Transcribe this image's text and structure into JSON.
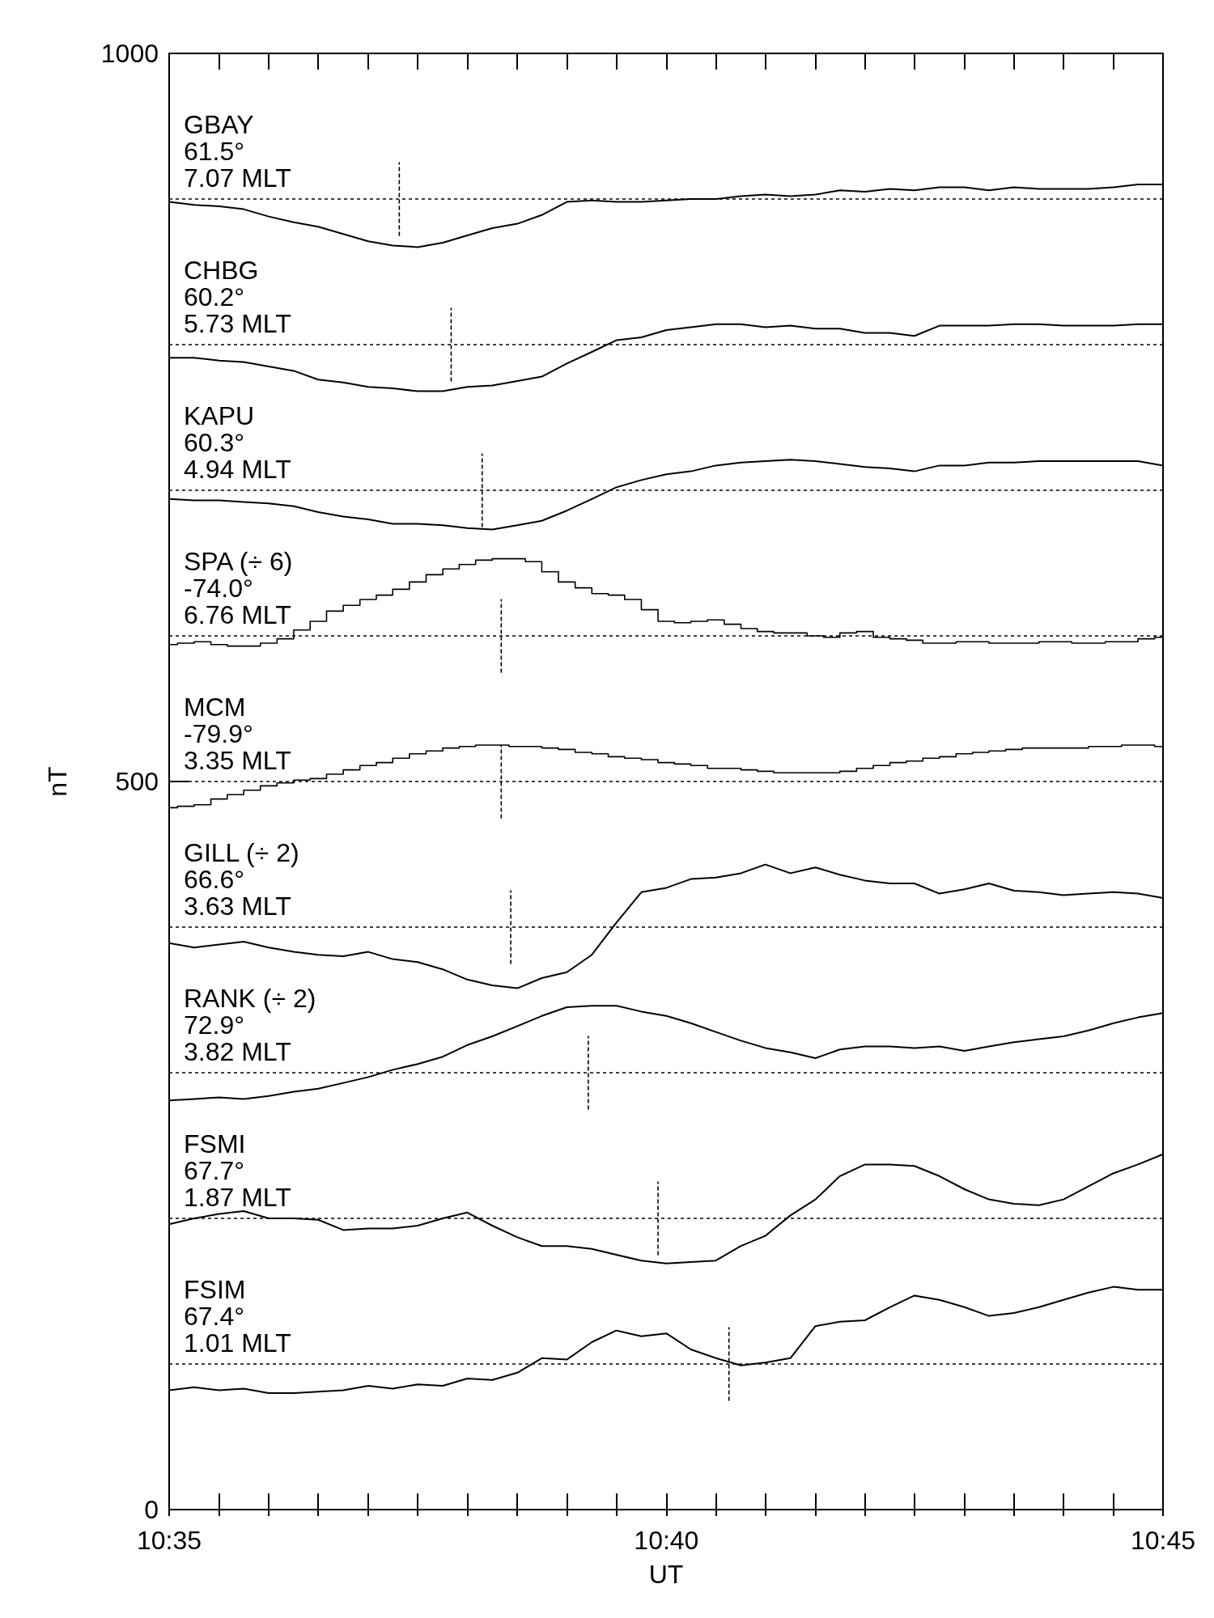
{
  "chart_data": {
    "type": "line",
    "xlabel": "UT",
    "ylabel": "nT",
    "marker": "none",
    "xlim": [
      10.5833,
      10.75
    ],
    "ylim": [
      0,
      1000
    ],
    "xticks": [
      {
        "value": 10.5833,
        "label": "10:35"
      },
      {
        "value": 10.5917,
        "label": null
      },
      {
        "value": 10.6,
        "label": null
      },
      {
        "value": 10.6083,
        "label": null
      },
      {
        "value": 10.6167,
        "label": null
      },
      {
        "value": 10.625,
        "label": null
      },
      {
        "value": 10.6333,
        "label": null
      },
      {
        "value": 10.6417,
        "label": null
      },
      {
        "value": 10.65,
        "label": null
      },
      {
        "value": 10.6583,
        "label": null
      },
      {
        "value": 10.6667,
        "label": "10:40"
      },
      {
        "value": 10.675,
        "label": null
      },
      {
        "value": 10.6833,
        "label": null
      },
      {
        "value": 10.6917,
        "label": null
      },
      {
        "value": 10.7,
        "label": null
      },
      {
        "value": 10.7083,
        "label": null
      },
      {
        "value": 10.7167,
        "label": null
      },
      {
        "value": 10.725,
        "label": null
      },
      {
        "value": 10.7333,
        "label": null
      },
      {
        "value": 10.7417,
        "label": null
      },
      {
        "value": 10.75,
        "label": "10:45"
      }
    ],
    "yticks": [
      0,
      500,
      1000
    ],
    "x": [
      10.5833,
      10.5875,
      10.5917,
      10.5958,
      10.6,
      10.6042,
      10.6083,
      10.6125,
      10.6167,
      10.6208,
      10.625,
      10.6292,
      10.6333,
      10.6375,
      10.6417,
      10.6458,
      10.65,
      10.6542,
      10.6583,
      10.6625,
      10.6667,
      10.6708,
      10.675,
      10.6792,
      10.6833,
      10.6875,
      10.6917,
      10.6958,
      10.7,
      10.7042,
      10.7083,
      10.7125,
      10.7167,
      10.7208,
      10.725,
      10.7292,
      10.7333,
      10.7375,
      10.7417,
      10.7458,
      10.75
    ],
    "ref_lines": [
      {
        "axis": "y",
        "value": 900,
        "line_style": "dotted",
        "color": "#000000"
      },
      {
        "axis": "y",
        "value": 800,
        "line_style": "dotted",
        "color": "#000000"
      },
      {
        "axis": "y",
        "value": 700,
        "line_style": "dotted",
        "color": "#000000"
      },
      {
        "axis": "y",
        "value": 600,
        "line_style": "dotted",
        "color": "#000000"
      },
      {
        "axis": "y",
        "value": 500,
        "line_style": "dotted",
        "color": "#000000"
      },
      {
        "axis": "y",
        "value": 400,
        "line_style": "dotted",
        "color": "#000000"
      },
      {
        "axis": "y",
        "value": 300,
        "line_style": "dotted",
        "color": "#000000"
      },
      {
        "axis": "y",
        "value": 200,
        "line_style": "dotted",
        "color": "#000000"
      },
      {
        "axis": "y",
        "value": 100,
        "line_style": "dotted",
        "color": "#000000"
      }
    ],
    "series": [
      {
        "color": "#000000",
        "values": [
          898,
          896,
          895,
          893,
          888,
          884,
          881,
          876,
          871,
          868,
          867,
          870,
          875,
          880,
          883,
          889,
          898,
          899,
          898,
          898,
          899,
          900,
          900,
          902,
          903,
          902,
          903,
          906,
          905,
          907,
          906,
          908,
          908,
          906,
          908,
          907,
          907,
          907,
          908,
          910,
          910
        ]
      },
      {
        "color": "#000000",
        "values": [
          791,
          791,
          789,
          788,
          785,
          782,
          776,
          774,
          771,
          770,
          768,
          768,
          771,
          772,
          775,
          778,
          787,
          795,
          803,
          805,
          810,
          812,
          814,
          814,
          812,
          813,
          811,
          811,
          808,
          808,
          806,
          813,
          813,
          813,
          814,
          814,
          813,
          813,
          813,
          814,
          814
        ]
      },
      {
        "color": "#000000",
        "values": [
          694,
          693,
          693,
          692,
          691,
          689,
          685,
          682,
          680,
          677,
          677,
          676,
          674,
          673,
          676,
          679,
          686,
          694,
          702,
          707,
          711,
          713,
          717,
          719,
          720,
          721,
          720,
          718,
          716,
          715,
          713,
          717,
          717,
          719,
          719,
          720,
          720,
          720,
          720,
          720,
          717
        ]
      },
      {
        "type": "step",
        "color": "#000000",
        "x": [
          10.5833,
          10.5861,
          10.5889,
          10.5917,
          10.5944,
          10.5972,
          10.6,
          10.6028,
          10.6056,
          10.6083,
          10.6111,
          10.6139,
          10.6167,
          10.6194,
          10.6222,
          10.625,
          10.6278,
          10.6306,
          10.6333,
          10.6361,
          10.6389,
          10.6417,
          10.6444,
          10.6472,
          10.65,
          10.6528,
          10.6556,
          10.6583,
          10.6611,
          10.6639,
          10.6667,
          10.6694,
          10.6722,
          10.675,
          10.6778,
          10.6806,
          10.6833,
          10.6861,
          10.6889,
          10.6917,
          10.6944,
          10.6972,
          10.7,
          10.7028,
          10.7056,
          10.7083,
          10.7111,
          10.7139,
          10.7167,
          10.7194,
          10.7222,
          10.725,
          10.7278,
          10.7306,
          10.7333,
          10.7361,
          10.7389,
          10.7417,
          10.7444,
          10.7472,
          10.75
        ],
        "values": [
          594,
          595,
          596,
          594,
          593,
          593,
          595,
          598,
          604,
          610,
          617,
          621,
          625,
          628,
          632,
          637,
          642,
          646,
          649,
          652,
          653,
          653,
          651,
          644,
          637,
          633,
          629,
          628,
          625,
          618,
          610,
          609,
          610,
          611,
          608,
          605,
          603,
          602,
          602,
          600,
          599,
          602,
          603,
          599,
          598,
          597,
          595,
          595,
          596,
          596,
          595,
          595,
          595,
          596,
          596,
          595,
          595,
          596,
          596,
          598,
          599
        ]
      },
      {
        "type": "step",
        "color": "#000000",
        "x": [
          10.5833,
          10.5861,
          10.5889,
          10.5917,
          10.5944,
          10.5972,
          10.6,
          10.6028,
          10.6056,
          10.6083,
          10.6111,
          10.6139,
          10.6167,
          10.6194,
          10.6222,
          10.625,
          10.6278,
          10.6306,
          10.6333,
          10.6361,
          10.6389,
          10.6417,
          10.6444,
          10.6472,
          10.65,
          10.6528,
          10.6556,
          10.6583,
          10.6611,
          10.6639,
          10.6667,
          10.6694,
          10.6722,
          10.675,
          10.6778,
          10.6806,
          10.6833,
          10.6861,
          10.6889,
          10.6917,
          10.6944,
          10.6972,
          10.7,
          10.7028,
          10.7056,
          10.7083,
          10.7111,
          10.7139,
          10.7167,
          10.7194,
          10.7222,
          10.725,
          10.7278,
          10.7306,
          10.7333,
          10.7361,
          10.7389,
          10.7417,
          10.7444,
          10.7472,
          10.75
        ],
        "values": [
          482,
          483,
          484,
          488,
          491,
          494,
          497,
          499,
          501,
          502,
          505,
          508,
          511,
          513,
          516,
          519,
          521,
          523,
          524,
          525,
          525,
          524,
          524,
          523,
          522,
          520,
          519,
          517,
          516,
          515,
          513,
          512,
          511,
          509,
          509,
          508,
          507,
          506,
          506,
          506,
          506,
          507,
          509,
          511,
          513,
          514,
          516,
          517,
          519,
          520,
          521,
          522,
          523,
          523,
          523,
          523,
          524,
          524,
          525,
          525,
          524
        ]
      },
      {
        "color": "#000000",
        "values": [
          389,
          386,
          388,
          390,
          386,
          383,
          381,
          380,
          383,
          378,
          376,
          371,
          364,
          360,
          358,
          365,
          369,
          381,
          403,
          424,
          427,
          433,
          434,
          437,
          443,
          437,
          441,
          436,
          432,
          430,
          430,
          423,
          426,
          430,
          425,
          424,
          422,
          423,
          424,
          423,
          420
        ]
      },
      {
        "color": "#000000",
        "values": [
          281,
          282,
          283,
          282,
          284,
          287,
          289,
          293,
          297,
          302,
          306,
          311,
          319,
          325,
          332,
          339,
          345,
          346,
          346,
          342,
          339,
          334,
          328,
          322,
          317,
          314,
          310,
          316,
          318,
          318,
          317,
          318,
          315,
          318,
          321,
          323,
          325,
          329,
          334,
          338,
          341
        ]
      },
      {
        "color": "#000000",
        "values": [
          196,
          200,
          203,
          205,
          200,
          200,
          199,
          192,
          193,
          193,
          195,
          200,
          204,
          195,
          187,
          181,
          181,
          179,
          175,
          171,
          169,
          170,
          171,
          181,
          188,
          202,
          213,
          229,
          237,
          237,
          236,
          229,
          220,
          213,
          210,
          209,
          213,
          222,
          231,
          237,
          244
        ]
      },
      {
        "color": "#000000",
        "values": [
          82,
          84,
          82,
          83,
          80,
          80,
          81,
          82,
          85,
          83,
          86,
          85,
          90,
          89,
          94,
          104,
          103,
          115,
          123,
          119,
          121,
          110,
          104,
          99,
          101,
          104,
          126,
          129,
          130,
          139,
          147,
          144,
          139,
          133,
          135,
          139,
          144,
          149,
          153,
          151,
          151
        ]
      },
      {
        "type": "line",
        "color": "#000000",
        "line_style": "dotted",
        "x": [
          10.6219,
          10.6219
        ],
        "values": [
          875,
          925
        ]
      },
      {
        "type": "line",
        "color": "#000000",
        "line_style": "dotted",
        "x": [
          10.6306,
          10.6306
        ],
        "values": [
          775,
          825
        ]
      },
      {
        "type": "line",
        "color": "#000000",
        "line_style": "dotted",
        "x": [
          10.6358,
          10.6358
        ],
        "values": [
          675,
          725
        ]
      },
      {
        "type": "line",
        "color": "#000000",
        "line_style": "dotted",
        "x": [
          10.639,
          10.639
        ],
        "values": [
          575,
          625
        ]
      },
      {
        "type": "line",
        "color": "#000000",
        "line_style": "dotted",
        "x": [
          10.639,
          10.639
        ],
        "values": [
          475,
          525
        ]
      },
      {
        "type": "line",
        "color": "#000000",
        "line_style": "dotted",
        "x": [
          10.6406,
          10.6406
        ],
        "values": [
          375,
          425
        ]
      },
      {
        "type": "line",
        "color": "#000000",
        "line_style": "dotted",
        "x": [
          10.6536,
          10.6536
        ],
        "values": [
          275,
          325
        ]
      },
      {
        "type": "line",
        "color": "#000000",
        "line_style": "dotted",
        "x": [
          10.6653,
          10.6653
        ],
        "values": [
          175,
          225
        ]
      },
      {
        "type": "line",
        "color": "#000000",
        "line_style": "dotted",
        "x": [
          10.6772,
          10.6772
        ],
        "values": [
          75,
          125
        ]
      }
    ],
    "annotations": [
      "GBAY",
      "61.5°",
      "7.07 MLT",
      "CHBG",
      "60.2°",
      "5.73 MLT",
      "KAPU",
      "60.3°",
      "4.94 MLT",
      "SPA (÷ 6)",
      "-74.0°",
      "6.76 MLT",
      "MCM",
      "-79.9°",
      "3.35 MLT",
      "GILL (÷ 2)",
      "66.6°",
      "3.63 MLT",
      "RANK (÷ 2)",
      "72.9°",
      "3.82 MLT",
      "FSMI",
      "67.7°",
      "1.87 MLT",
      "FSIM",
      "67.4°",
      "1.01 MLT"
    ]
  }
}
